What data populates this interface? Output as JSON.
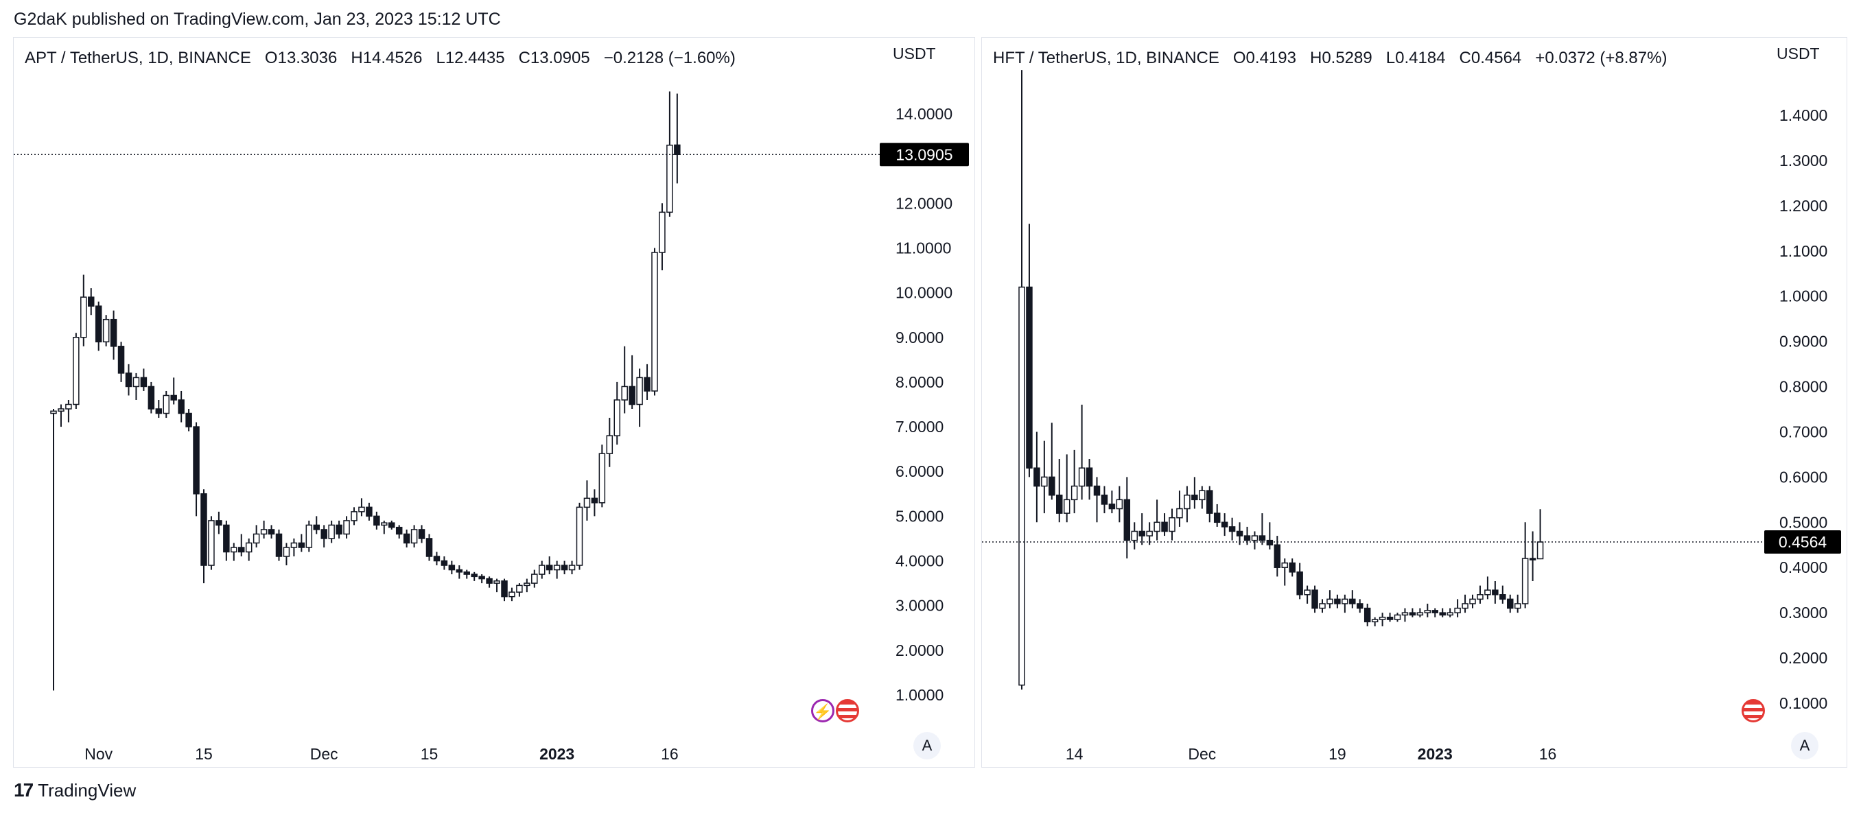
{
  "attribution": "G2daK published on TradingView.com, Jan 23, 2023 15:12 UTC",
  "footer": {
    "brand": "TradingView"
  },
  "panels": [
    {
      "symbol": "APT / TetherUS, 1D, BINANCE",
      "ohlc_text": {
        "o": "O13.3036",
        "h": "H14.4526",
        "l": "L12.4435",
        "c": "C13.0905",
        "chg": "−0.2128 (−1.60%)"
      },
      "currency": "USDT",
      "last_price": "13.0905",
      "auto_label": "A"
    },
    {
      "symbol": "HFT / TetherUS, 1D, BINANCE",
      "ohlc_text": {
        "o": "O0.4193",
        "h": "H0.5289",
        "l": "L0.4184",
        "c": "C0.4564",
        "chg": "+0.0372 (+8.87%)"
      },
      "currency": "USDT",
      "last_price": "0.4564",
      "auto_label": "A"
    }
  ],
  "chart_data": [
    {
      "type": "candlestick",
      "symbol": "APT/USDT",
      "interval": "1D",
      "y_axis_ticks": [
        "1.0000",
        "2.0000",
        "3.0000",
        "4.0000",
        "5.0000",
        "6.0000",
        "7.0000",
        "8.0000",
        "9.0000",
        "10.0000",
        "11.0000",
        "12.0000",
        "13.0000",
        "14.0000"
      ],
      "ylim": [
        0.3,
        15.0
      ],
      "x_axis_labels": [
        {
          "label": "Nov",
          "index": 6
        },
        {
          "label": "15",
          "index": 20
        },
        {
          "label": "Dec",
          "index": 36
        },
        {
          "label": "15",
          "index": 50
        },
        {
          "label": "2023",
          "index": 67
        },
        {
          "label": "16",
          "index": 82
        }
      ],
      "last_price": 13.0905,
      "candles": [
        [
          7.3,
          7.4,
          1.1,
          7.35
        ],
        [
          7.35,
          7.5,
          7.0,
          7.4
        ],
        [
          7.4,
          7.6,
          7.1,
          7.5
        ],
        [
          7.5,
          9.1,
          7.4,
          9.0
        ],
        [
          9.0,
          10.4,
          8.8,
          9.9
        ],
        [
          9.9,
          10.1,
          9.5,
          9.7
        ],
        [
          9.7,
          9.8,
          8.7,
          8.9
        ],
        [
          8.9,
          9.5,
          8.8,
          9.4
        ],
        [
          9.4,
          9.6,
          8.5,
          8.8
        ],
        [
          8.8,
          8.9,
          8.0,
          8.2
        ],
        [
          8.2,
          8.4,
          7.7,
          7.9
        ],
        [
          7.9,
          8.2,
          7.6,
          8.1
        ],
        [
          8.1,
          8.3,
          7.8,
          7.9
        ],
        [
          7.9,
          8.0,
          7.3,
          7.4
        ],
        [
          7.4,
          7.6,
          7.2,
          7.3
        ],
        [
          7.3,
          7.8,
          7.2,
          7.7
        ],
        [
          7.7,
          8.1,
          7.5,
          7.6
        ],
        [
          7.6,
          7.8,
          7.1,
          7.3
        ],
        [
          7.3,
          7.4,
          6.9,
          7.0
        ],
        [
          7.0,
          7.1,
          5.0,
          5.5
        ],
        [
          5.5,
          5.6,
          3.5,
          3.9
        ],
        [
          3.9,
          5.0,
          3.8,
          4.9
        ],
        [
          4.9,
          5.1,
          4.6,
          4.8
        ],
        [
          4.8,
          4.9,
          4.0,
          4.2
        ],
        [
          4.2,
          4.4,
          4.0,
          4.3
        ],
        [
          4.3,
          4.6,
          4.1,
          4.2
        ],
        [
          4.2,
          4.5,
          4.0,
          4.4
        ],
        [
          4.4,
          4.8,
          4.3,
          4.6
        ],
        [
          4.6,
          4.9,
          4.5,
          4.7
        ],
        [
          4.7,
          4.8,
          4.5,
          4.6
        ],
        [
          4.6,
          4.7,
          4.0,
          4.1
        ],
        [
          4.1,
          4.4,
          3.9,
          4.3
        ],
        [
          4.3,
          4.5,
          4.1,
          4.4
        ],
        [
          4.4,
          4.6,
          4.2,
          4.3
        ],
        [
          4.3,
          4.9,
          4.2,
          4.8
        ],
        [
          4.8,
          5.0,
          4.6,
          4.7
        ],
        [
          4.7,
          4.8,
          4.3,
          4.5
        ],
        [
          4.5,
          4.9,
          4.4,
          4.8
        ],
        [
          4.8,
          4.9,
          4.5,
          4.6
        ],
        [
          4.6,
          5.0,
          4.5,
          4.9
        ],
        [
          4.9,
          5.2,
          4.8,
          5.1
        ],
        [
          5.1,
          5.4,
          5.0,
          5.2
        ],
        [
          5.2,
          5.3,
          4.9,
          5.0
        ],
        [
          5.0,
          5.1,
          4.7,
          4.8
        ],
        [
          4.8,
          4.9,
          4.6,
          4.85
        ],
        [
          4.85,
          4.9,
          4.7,
          4.75
        ],
        [
          4.75,
          4.8,
          4.5,
          4.6
        ],
        [
          4.6,
          4.7,
          4.3,
          4.4
        ],
        [
          4.4,
          4.8,
          4.3,
          4.7
        ],
        [
          4.7,
          4.8,
          4.4,
          4.5
        ],
        [
          4.5,
          4.6,
          4.0,
          4.1
        ],
        [
          4.1,
          4.2,
          3.9,
          4.0
        ],
        [
          4.0,
          4.1,
          3.8,
          3.9
        ],
        [
          3.9,
          4.0,
          3.7,
          3.8
        ],
        [
          3.8,
          3.9,
          3.6,
          3.75
        ],
        [
          3.75,
          3.8,
          3.6,
          3.7
        ],
        [
          3.7,
          3.75,
          3.55,
          3.65
        ],
        [
          3.65,
          3.7,
          3.5,
          3.6
        ],
        [
          3.6,
          3.65,
          3.4,
          3.5
        ],
        [
          3.5,
          3.6,
          3.3,
          3.55
        ],
        [
          3.55,
          3.6,
          3.1,
          3.2
        ],
        [
          3.2,
          3.4,
          3.1,
          3.3
        ],
        [
          3.3,
          3.5,
          3.2,
          3.45
        ],
        [
          3.45,
          3.6,
          3.3,
          3.5
        ],
        [
          3.5,
          3.8,
          3.4,
          3.7
        ],
        [
          3.7,
          4.0,
          3.6,
          3.9
        ],
        [
          3.9,
          4.1,
          3.7,
          3.8
        ],
        [
          3.8,
          4.0,
          3.6,
          3.9
        ],
        [
          3.9,
          4.0,
          3.7,
          3.8
        ],
        [
          3.8,
          4.0,
          3.7,
          3.9
        ],
        [
          3.9,
          5.3,
          3.8,
          5.2
        ],
        [
          5.2,
          5.8,
          4.9,
          5.4
        ],
        [
          5.4,
          5.6,
          5.0,
          5.3
        ],
        [
          5.3,
          6.6,
          5.2,
          6.4
        ],
        [
          6.4,
          7.2,
          6.1,
          6.8
        ],
        [
          6.8,
          8.0,
          6.6,
          7.6
        ],
        [
          7.6,
          8.8,
          7.3,
          7.9
        ],
        [
          7.9,
          8.6,
          7.4,
          7.5
        ],
        [
          7.5,
          8.3,
          7.0,
          8.1
        ],
        [
          8.1,
          8.4,
          7.6,
          7.8
        ],
        [
          7.8,
          11.0,
          7.7,
          10.9
        ],
        [
          10.9,
          12.0,
          10.5,
          11.8
        ],
        [
          11.8,
          14.5,
          11.7,
          13.3
        ],
        [
          13.3036,
          14.4526,
          12.4435,
          13.0905
        ]
      ]
    },
    {
      "type": "candlestick",
      "symbol": "HFT/USDT",
      "interval": "1D",
      "y_axis_ticks": [
        "0.1000",
        "0.2000",
        "0.3000",
        "0.4000",
        "0.5000",
        "0.6000",
        "0.7000",
        "0.8000",
        "0.9000",
        "1.0000",
        "1.1000",
        "1.2000",
        "1.3000",
        "1.4000"
      ],
      "ylim": [
        0.015,
        1.49
      ],
      "x_axis_labels": [
        {
          "label": "14",
          "index": 7
        },
        {
          "label": "Dec",
          "index": 24
        },
        {
          "label": "19",
          "index": 42
        },
        {
          "label": "2023",
          "index": 55
        },
        {
          "label": "16",
          "index": 70
        }
      ],
      "last_price": 0.4564,
      "candles": [
        [
          0.14,
          1.5,
          0.13,
          1.02
        ],
        [
          1.02,
          1.16,
          0.6,
          0.62
        ],
        [
          0.62,
          0.7,
          0.5,
          0.58
        ],
        [
          0.58,
          0.68,
          0.52,
          0.6
        ],
        [
          0.6,
          0.72,
          0.55,
          0.56
        ],
        [
          0.56,
          0.64,
          0.5,
          0.52
        ],
        [
          0.52,
          0.65,
          0.5,
          0.55
        ],
        [
          0.55,
          0.66,
          0.52,
          0.58
        ],
        [
          0.58,
          0.76,
          0.55,
          0.62
        ],
        [
          0.62,
          0.64,
          0.55,
          0.58
        ],
        [
          0.58,
          0.6,
          0.5,
          0.56
        ],
        [
          0.56,
          0.58,
          0.52,
          0.54
        ],
        [
          0.54,
          0.57,
          0.52,
          0.53
        ],
        [
          0.53,
          0.58,
          0.5,
          0.55
        ],
        [
          0.55,
          0.6,
          0.42,
          0.46
        ],
        [
          0.46,
          0.5,
          0.44,
          0.48
        ],
        [
          0.48,
          0.52,
          0.45,
          0.47
        ],
        [
          0.47,
          0.5,
          0.45,
          0.48
        ],
        [
          0.48,
          0.55,
          0.46,
          0.5
        ],
        [
          0.5,
          0.52,
          0.47,
          0.48
        ],
        [
          0.48,
          0.53,
          0.46,
          0.51
        ],
        [
          0.51,
          0.57,
          0.49,
          0.53
        ],
        [
          0.53,
          0.58,
          0.5,
          0.56
        ],
        [
          0.56,
          0.6,
          0.53,
          0.55
        ],
        [
          0.55,
          0.58,
          0.53,
          0.57
        ],
        [
          0.57,
          0.58,
          0.5,
          0.52
        ],
        [
          0.52,
          0.54,
          0.49,
          0.5
        ],
        [
          0.5,
          0.52,
          0.47,
          0.49
        ],
        [
          0.49,
          0.51,
          0.46,
          0.48
        ],
        [
          0.48,
          0.5,
          0.45,
          0.47
        ],
        [
          0.47,
          0.49,
          0.45,
          0.46
        ],
        [
          0.46,
          0.48,
          0.44,
          0.47
        ],
        [
          0.47,
          0.52,
          0.45,
          0.46
        ],
        [
          0.46,
          0.5,
          0.44,
          0.45
        ],
        [
          0.45,
          0.47,
          0.38,
          0.4
        ],
        [
          0.4,
          0.42,
          0.36,
          0.41
        ],
        [
          0.41,
          0.42,
          0.38,
          0.39
        ],
        [
          0.39,
          0.41,
          0.33,
          0.34
        ],
        [
          0.34,
          0.36,
          0.32,
          0.35
        ],
        [
          0.35,
          0.36,
          0.3,
          0.31
        ],
        [
          0.31,
          0.33,
          0.3,
          0.32
        ],
        [
          0.32,
          0.35,
          0.31,
          0.33
        ],
        [
          0.33,
          0.34,
          0.31,
          0.32
        ],
        [
          0.32,
          0.34,
          0.3,
          0.33
        ],
        [
          0.33,
          0.35,
          0.31,
          0.32
        ],
        [
          0.32,
          0.33,
          0.3,
          0.31
        ],
        [
          0.31,
          0.32,
          0.27,
          0.28
        ],
        [
          0.28,
          0.29,
          0.27,
          0.285
        ],
        [
          0.285,
          0.3,
          0.27,
          0.29
        ],
        [
          0.29,
          0.3,
          0.28,
          0.285
        ],
        [
          0.285,
          0.3,
          0.28,
          0.295
        ],
        [
          0.295,
          0.31,
          0.28,
          0.3
        ],
        [
          0.3,
          0.31,
          0.29,
          0.295
        ],
        [
          0.295,
          0.31,
          0.29,
          0.3
        ],
        [
          0.3,
          0.32,
          0.29,
          0.305
        ],
        [
          0.305,
          0.31,
          0.29,
          0.3
        ],
        [
          0.3,
          0.31,
          0.29,
          0.295
        ],
        [
          0.295,
          0.31,
          0.29,
          0.3
        ],
        [
          0.3,
          0.33,
          0.29,
          0.31
        ],
        [
          0.31,
          0.34,
          0.3,
          0.32
        ],
        [
          0.32,
          0.34,
          0.31,
          0.33
        ],
        [
          0.33,
          0.36,
          0.32,
          0.34
        ],
        [
          0.34,
          0.38,
          0.33,
          0.35
        ],
        [
          0.35,
          0.37,
          0.32,
          0.34
        ],
        [
          0.34,
          0.36,
          0.32,
          0.33
        ],
        [
          0.33,
          0.34,
          0.3,
          0.31
        ],
        [
          0.31,
          0.34,
          0.3,
          0.32
        ],
        [
          0.32,
          0.5,
          0.31,
          0.42
        ],
        [
          0.42,
          0.48,
          0.37,
          0.4193
        ],
        [
          0.4193,
          0.5289,
          0.4184,
          0.4564
        ]
      ]
    }
  ]
}
